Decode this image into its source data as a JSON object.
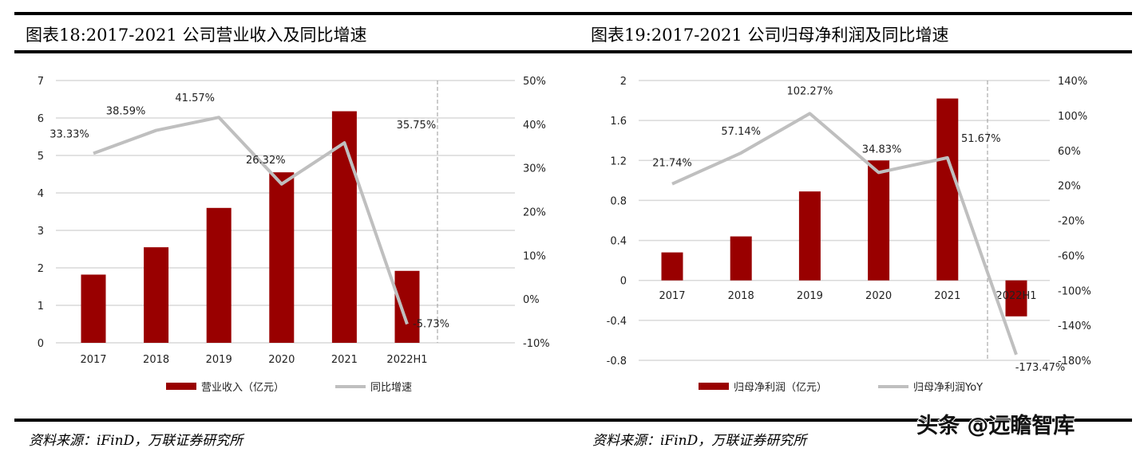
{
  "chart_data": [
    {
      "type": "bar+line",
      "title": "图表18:2017-2021 公司营业收入及同比增速",
      "categories": [
        "2017",
        "2018",
        "2019",
        "2020",
        "2021",
        "2022H1"
      ],
      "series": [
        {
          "name": "营业收入（亿元）",
          "type": "bar",
          "axis": "left",
          "values": [
            1.82,
            2.55,
            3.6,
            4.55,
            6.18,
            1.92
          ],
          "color": "#990000"
        },
        {
          "name": "同比增速",
          "type": "line",
          "axis": "right",
          "values": [
            33.33,
            38.59,
            41.57,
            26.32,
            35.75,
            -5.73
          ],
          "labels": [
            "33.33%",
            "38.59%",
            "41.57%",
            "26.32%",
            "35.75%",
            "-5.73%"
          ],
          "color": "#bfbfbf"
        }
      ],
      "left_axis": {
        "ylim": [
          0,
          7
        ],
        "ticks": [
          "0",
          "1",
          "2",
          "3",
          "4",
          "5",
          "6",
          "7"
        ]
      },
      "right_axis": {
        "ylim": [
          -10,
          50
        ],
        "ticks": [
          "-10%",
          "0%",
          "10%",
          "20%",
          "30%",
          "40%",
          "50%"
        ]
      },
      "grid": true,
      "divider_before": "2022H1",
      "legend": "bottom"
    },
    {
      "type": "bar+line",
      "title": "图表19:2017-2021 公司归母净利润及同比增速",
      "categories": [
        "2017",
        "2018",
        "2019",
        "2020",
        "2021",
        "2022H1"
      ],
      "series": [
        {
          "name": "归母净利润（亿元）",
          "type": "bar",
          "axis": "left",
          "values": [
            0.28,
            0.44,
            0.89,
            1.2,
            1.82,
            -0.36
          ],
          "color": "#990000"
        },
        {
          "name": "归母净利润YoY",
          "type": "line",
          "axis": "right",
          "values": [
            21.74,
            57.14,
            102.27,
            34.83,
            51.67,
            -173.47
          ],
          "labels": [
            "21.74%",
            "57.14%",
            "102.27%",
            "34.83%",
            "51.67%",
            "-173.47%"
          ],
          "color": "#bfbfbf"
        }
      ],
      "left_axis": {
        "ylim": [
          -0.8,
          2
        ],
        "ticks": [
          "-0.8",
          "-0.4",
          "0",
          "0.4",
          "0.8",
          "1.2",
          "1.6",
          "2"
        ]
      },
      "right_axis": {
        "ylim": [
          -180,
          140
        ],
        "ticks": [
          "-180%",
          "-140%",
          "-100%",
          "-60%",
          "-20%",
          "20%",
          "60%",
          "100%",
          "140%"
        ]
      },
      "grid": true,
      "divider_before": "2022H1",
      "legend": "bottom"
    }
  ],
  "sources": [
    "资料来源：iFinD，万联证券研究所",
    "资料来源：iFinD，万联证券研究所"
  ],
  "watermark": "头条 @远瞻智库"
}
